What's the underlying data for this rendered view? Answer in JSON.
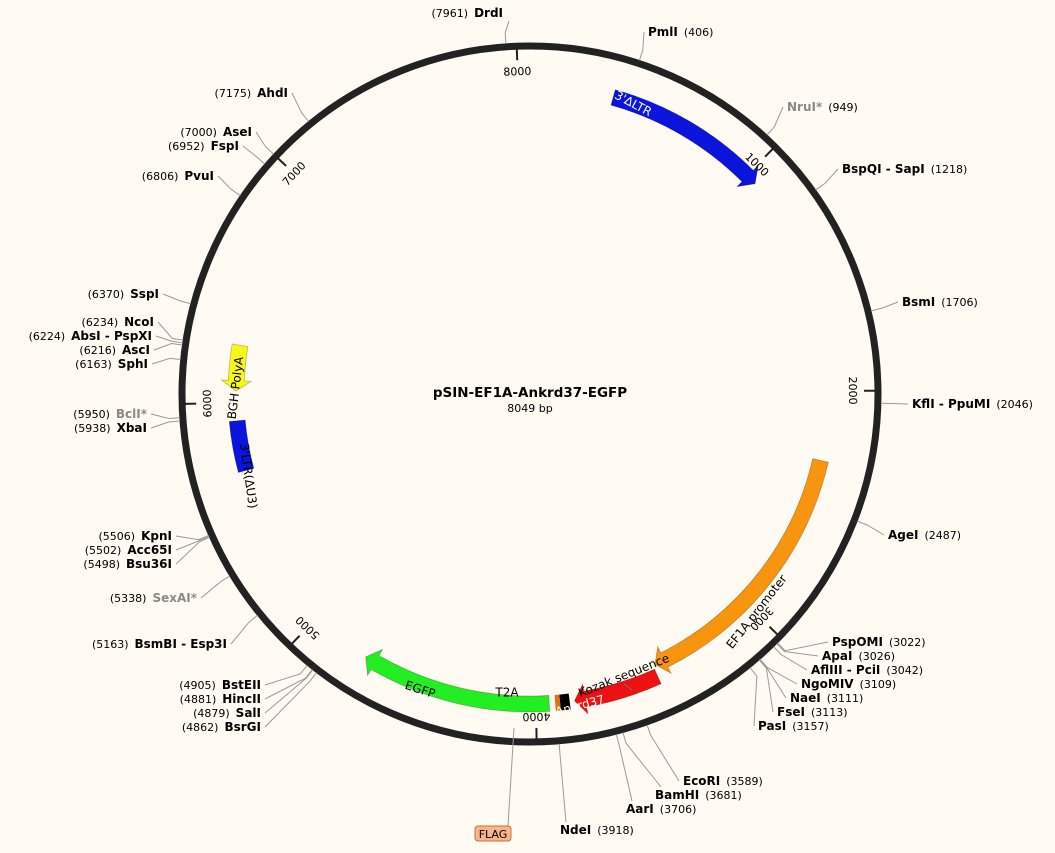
{
  "plasmid": {
    "name": "pSIN-EF1A-Ankrd37-EGFP",
    "length_label": "8049 bp",
    "length": 8049
  },
  "ticks": [
    {
      "pos": 1000,
      "label": "1000"
    },
    {
      "pos": 2000,
      "label": "2000"
    },
    {
      "pos": 3000,
      "label": "3000"
    },
    {
      "pos": 4000,
      "label": "4000"
    },
    {
      "pos": 5000,
      "label": "5000"
    },
    {
      "pos": 6000,
      "label": "6000"
    },
    {
      "pos": 7000,
      "label": "7000"
    },
    {
      "pos": 8000,
      "label": "8000"
    }
  ],
  "sites": [
    {
      "name": "DrdI",
      "pos": "(7961)",
      "bp": 7961
    },
    {
      "name": "PmlI",
      "pos": "(406)",
      "bp": 406
    },
    {
      "name": "NruI*",
      "pos": "(949)",
      "bp": 949,
      "gray": true
    },
    {
      "name": "BspQI - SapI",
      "pos": "(1218)",
      "bp": 1218
    },
    {
      "name": "BsmI",
      "pos": "(1706)",
      "bp": 1706
    },
    {
      "name": "KflI - PpuMI",
      "pos": "(2046)",
      "bp": 2046
    },
    {
      "name": "AgeI",
      "pos": "(2487)",
      "bp": 2487
    },
    {
      "name": "PspOMI",
      "pos": "(3022)",
      "bp": 3022
    },
    {
      "name": "ApaI",
      "pos": "(3026)",
      "bp": 3026
    },
    {
      "name": "AflIII - PciI",
      "pos": "(3042)",
      "bp": 3042
    },
    {
      "name": "NgoMIV",
      "pos": "(3109)",
      "bp": 3109
    },
    {
      "name": "NaeI",
      "pos": "(3111)",
      "bp": 3111
    },
    {
      "name": "FseI",
      "pos": "(3113)",
      "bp": 3113
    },
    {
      "name": "PasI",
      "pos": "(3157)",
      "bp": 3157
    },
    {
      "name": "EcoRI",
      "pos": "(3589)",
      "bp": 3589
    },
    {
      "name": "BamHI",
      "pos": "(3681)",
      "bp": 3681
    },
    {
      "name": "AarI",
      "pos": "(3706)",
      "bp": 3706
    },
    {
      "name": "NdeI",
      "pos": "(3918)",
      "bp": 3918
    },
    {
      "name": "BstEII",
      "pos": "(4905)",
      "bp": 4905
    },
    {
      "name": "HincII",
      "pos": "(4881)",
      "bp": 4881
    },
    {
      "name": "SalI",
      "pos": "(4879)",
      "bp": 4879
    },
    {
      "name": "BsrGI",
      "pos": "(4862)",
      "bp": 4862
    },
    {
      "name": "BsmBI - Esp3I",
      "pos": "(5163)",
      "bp": 5163
    },
    {
      "name": "SexAI*",
      "pos": "(5338)",
      "bp": 5338,
      "gray": true
    },
    {
      "name": "KpnI",
      "pos": "(5506)",
      "bp": 5506
    },
    {
      "name": "Acc65I",
      "pos": "(5502)",
      "bp": 5502
    },
    {
      "name": "Bsu36I",
      "pos": "(5498)",
      "bp": 5498
    },
    {
      "name": "BclI*",
      "pos": "(5950)",
      "bp": 5950,
      "gray": true
    },
    {
      "name": "XbaI",
      "pos": "(5938)",
      "bp": 5938
    },
    {
      "name": "NcoI",
      "pos": "(6234)",
      "bp": 6234
    },
    {
      "name": "AbsI - PspXI",
      "pos": "(6224)",
      "bp": 6224
    },
    {
      "name": "AscI",
      "pos": "(6216)",
      "bp": 6216
    },
    {
      "name": "SphI",
      "pos": "(6163)",
      "bp": 6163
    },
    {
      "name": "SspI",
      "pos": "(6370)",
      "bp": 6370
    },
    {
      "name": "PvuI",
      "pos": "(6806)",
      "bp": 6806
    },
    {
      "name": "AseI",
      "pos": "(7000)",
      "bp": 7000
    },
    {
      "name": "FspI",
      "pos": "(6952)",
      "bp": 6952
    },
    {
      "name": "AhdI",
      "pos": "(7175)",
      "bp": 7175
    }
  ],
  "features": [
    {
      "label": "3'ΔLTR",
      "color": "#0a14dc",
      "start": 350,
      "end": 1050,
      "direction": "forward"
    },
    {
      "label": "EF1A promoter",
      "color": "#f7950f",
      "start": 2300,
      "end": 3470,
      "direction": "forward"
    },
    {
      "label": "Kozak sequence",
      "color": "#000000",
      "start": 3470,
      "end": 3480,
      "direction": "none"
    },
    {
      "label": "Ankrd37",
      "color": "#ee1111",
      "start": 3480,
      "end": 3840,
      "direction": "forward"
    },
    {
      "label": "T2A",
      "color": "#000000",
      "start": 3880,
      "end": 3940,
      "direction": "none"
    },
    {
      "label": "EGFP",
      "color": "#22ee22",
      "start": 3945,
      "end": 4740,
      "direction": "forward"
    },
    {
      "label": "3'LTR(ΔU3)",
      "color": "#0a14dc",
      "start": 5700,
      "end": 5920,
      "direction": "none"
    },
    {
      "label": "BGH PolyA",
      "color": "#f7f71a",
      "start": 6050,
      "end": 6250,
      "direction": "reverse"
    }
  ],
  "flag_label": "FLAG"
}
